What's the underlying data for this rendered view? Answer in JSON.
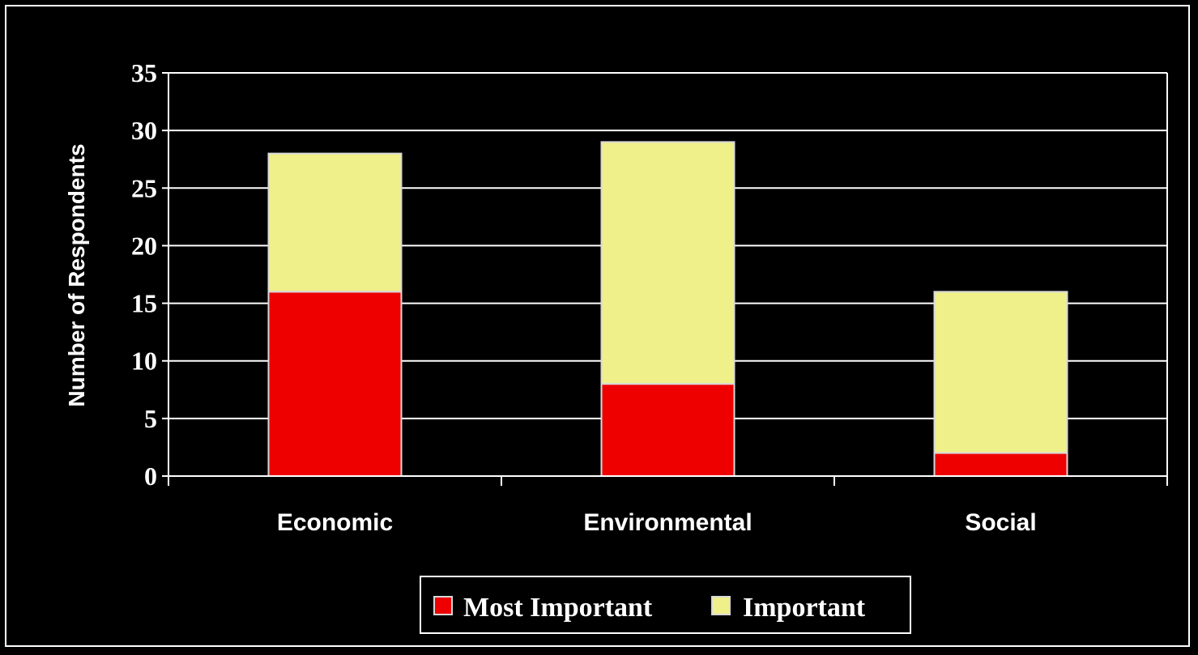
{
  "chart_data": {
    "type": "bar",
    "stacked": true,
    "categories": [
      "Economic",
      "Environmental",
      "Social"
    ],
    "series": [
      {
        "name": "Most Important",
        "values": [
          16,
          8,
          2
        ],
        "color": "#ee0000"
      },
      {
        "name": "Important",
        "values": [
          12,
          21,
          14
        ],
        "color": "#f0f08a"
      }
    ],
    "ylabel": "Number of Respondents",
    "xlabel": "",
    "ylim": [
      0,
      35
    ],
    "yticks": [
      0,
      5,
      10,
      15,
      20,
      25,
      30,
      35
    ],
    "grid": true,
    "legend_position": "bottom"
  },
  "colors": {
    "background": "#000000",
    "axis": "#ffffff",
    "bar_outline": "#d8d8d8"
  }
}
